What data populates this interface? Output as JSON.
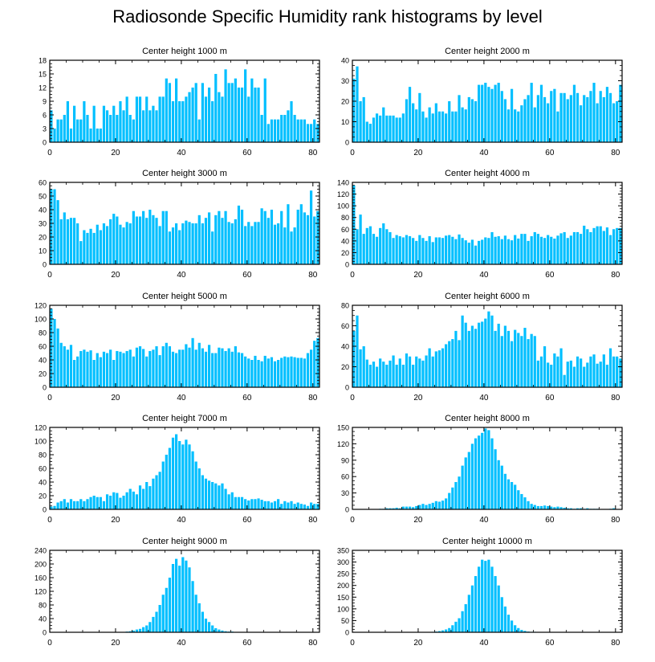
{
  "title": "Radiosonde Specific Humidity rank histograms by level",
  "bar_color": "#00bfff",
  "chart_data": [
    {
      "type": "bar",
      "title": "Center height 1000 m",
      "xlabel": "",
      "ylabel": "",
      "xlim": [
        0,
        82
      ],
      "xticks": [
        0,
        20,
        40,
        60,
        80
      ],
      "ylim": [
        0,
        18
      ],
      "yticks": [
        0,
        3,
        6,
        9,
        12,
        15,
        18
      ],
      "values": [
        7,
        3,
        5,
        5,
        6,
        9,
        3,
        8,
        5,
        5,
        9,
        6,
        3,
        8,
        3,
        3,
        8,
        7,
        6,
        8,
        6,
        9,
        7,
        10,
        6,
        5,
        10,
        10,
        7,
        10,
        7,
        8,
        7,
        10,
        10,
        14,
        13,
        9,
        14,
        9,
        9,
        10,
        11,
        12,
        13,
        5,
        13,
        10,
        12,
        9,
        15,
        11,
        10,
        16,
        13,
        13,
        14,
        12,
        12,
        16,
        10,
        14,
        12,
        12,
        6,
        14,
        4,
        5,
        5,
        5,
        6,
        6,
        7,
        9,
        6,
        5,
        5,
        5,
        4,
        4,
        5,
        4
      ]
    },
    {
      "type": "bar",
      "title": "Center height 2000 m",
      "xlabel": "",
      "ylabel": "",
      "xlim": [
        0,
        82
      ],
      "xticks": [
        0,
        20,
        40,
        60,
        80
      ],
      "ylim": [
        0,
        40
      ],
      "yticks": [
        0,
        10,
        20,
        30,
        40
      ],
      "values": [
        31,
        37,
        20,
        22,
        10,
        9,
        12,
        14,
        13,
        17,
        13,
        13,
        13,
        12,
        12,
        14,
        21,
        27,
        19,
        16,
        24,
        15,
        12,
        17,
        14,
        19,
        15,
        15,
        14,
        20,
        15,
        15,
        23,
        17,
        16,
        22,
        21,
        20,
        28,
        28,
        29,
        27,
        26,
        28,
        29,
        25,
        21,
        16,
        26,
        16,
        15,
        18,
        21,
        23,
        29,
        17,
        23,
        28,
        22,
        19,
        25,
        26,
        15,
        24,
        24,
        21,
        23,
        28,
        24,
        18,
        23,
        22,
        25,
        29,
        19,
        25,
        22,
        27,
        24,
        19,
        20,
        28
      ]
    },
    {
      "type": "bar",
      "title": "Center height 3000 m",
      "xlabel": "",
      "ylabel": "",
      "xlim": [
        0,
        82
      ],
      "xticks": [
        0,
        20,
        40,
        60,
        80
      ],
      "ylim": [
        0,
        60
      ],
      "yticks": [
        0,
        10,
        20,
        30,
        40,
        50,
        60
      ],
      "values": [
        55,
        55,
        47,
        33,
        38,
        33,
        34,
        34,
        30,
        17,
        25,
        23,
        26,
        23,
        29,
        25,
        30,
        28,
        33,
        37,
        35,
        29,
        27,
        31,
        30,
        39,
        35,
        35,
        39,
        34,
        40,
        36,
        34,
        28,
        39,
        39,
        24,
        27,
        30,
        25,
        30,
        32,
        31,
        30,
        30,
        36,
        30,
        34,
        38,
        24,
        36,
        39,
        34,
        39,
        31,
        30,
        33,
        43,
        40,
        28,
        31,
        28,
        31,
        31,
        41,
        39,
        34,
        40,
        29,
        30,
        39,
        27,
        44,
        24,
        27,
        40,
        44,
        38,
        36,
        54,
        35,
        39
      ]
    },
    {
      "type": "bar",
      "title": "Center height 4000 m",
      "xlabel": "",
      "ylabel": "",
      "xlim": [
        0,
        82
      ],
      "xticks": [
        0,
        20,
        40,
        60,
        80
      ],
      "ylim": [
        0,
        140
      ],
      "yticks": [
        0,
        20,
        40,
        60,
        80,
        100,
        120,
        140
      ],
      "values": [
        135,
        60,
        85,
        52,
        62,
        65,
        52,
        47,
        62,
        70,
        60,
        55,
        45,
        50,
        48,
        46,
        50,
        48,
        45,
        40,
        50,
        45,
        40,
        48,
        38,
        46,
        46,
        45,
        49,
        50,
        47,
        43,
        51,
        45,
        41,
        37,
        42,
        32,
        40,
        42,
        46,
        45,
        55,
        47,
        48,
        43,
        49,
        43,
        41,
        50,
        44,
        52,
        52,
        40,
        48,
        55,
        52,
        47,
        45,
        50,
        47,
        44,
        49,
        53,
        55,
        45,
        49,
        55,
        55,
        52,
        66,
        60,
        55,
        62,
        65,
        65,
        57,
        63,
        50,
        60,
        62,
        62
      ]
    },
    {
      "type": "bar",
      "title": "Center height 5000 m",
      "xlabel": "",
      "ylabel": "",
      "xlim": [
        0,
        82
      ],
      "xticks": [
        0,
        20,
        40,
        60,
        80
      ],
      "ylim": [
        0,
        120
      ],
      "yticks": [
        0,
        20,
        40,
        60,
        80,
        100,
        120
      ],
      "values": [
        115,
        100,
        86,
        65,
        60,
        55,
        62,
        40,
        45,
        53,
        55,
        52,
        54,
        40,
        50,
        44,
        52,
        50,
        55,
        40,
        53,
        52,
        50,
        53,
        55,
        45,
        58,
        60,
        56,
        45,
        53,
        55,
        60,
        47,
        60,
        65,
        60,
        52,
        50,
        55,
        55,
        63,
        58,
        72,
        55,
        65,
        57,
        52,
        62,
        50,
        50,
        58,
        57,
        53,
        57,
        52,
        60,
        51,
        50,
        45,
        42,
        40,
        46,
        40,
        38,
        46,
        42,
        44,
        38,
        40,
        43,
        45,
        44,
        45,
        44,
        43,
        43,
        42,
        50,
        55,
        68,
        72
      ]
    },
    {
      "type": "bar",
      "title": "Center height 6000 m",
      "xlabel": "",
      "ylabel": "",
      "xlim": [
        0,
        82
      ],
      "xticks": [
        0,
        20,
        40,
        60,
        80
      ],
      "ylim": [
        0,
        80
      ],
      "yticks": [
        0,
        20,
        40,
        60,
        80
      ],
      "values": [
        55,
        70,
        37,
        40,
        27,
        22,
        25,
        20,
        28,
        25,
        22,
        26,
        31,
        22,
        28,
        22,
        33,
        30,
        22,
        30,
        28,
        26,
        31,
        38,
        30,
        35,
        36,
        38,
        42,
        45,
        47,
        55,
        46,
        70,
        63,
        55,
        60,
        57,
        63,
        64,
        67,
        74,
        70,
        55,
        62,
        50,
        60,
        55,
        45,
        56,
        53,
        50,
        58,
        47,
        52,
        50,
        26,
        30,
        40,
        24,
        22,
        33,
        30,
        38,
        12,
        25,
        26,
        20,
        30,
        28,
        20,
        24,
        30,
        32,
        23,
        25,
        32,
        22,
        38,
        30,
        30,
        28
      ]
    },
    {
      "type": "bar",
      "title": "Center height 7000 m",
      "xlabel": "",
      "ylabel": "",
      "xlim": [
        0,
        82
      ],
      "xticks": [
        0,
        20,
        40,
        60,
        80
      ],
      "ylim": [
        0,
        120
      ],
      "yticks": [
        0,
        20,
        40,
        60,
        80,
        100,
        120
      ],
      "values": [
        4,
        5,
        10,
        12,
        15,
        10,
        15,
        12,
        12,
        15,
        12,
        15,
        18,
        20,
        18,
        18,
        12,
        22,
        20,
        25,
        24,
        17,
        20,
        25,
        30,
        26,
        22,
        35,
        30,
        40,
        34,
        45,
        50,
        55,
        70,
        80,
        90,
        105,
        110,
        100,
        95,
        102,
        95,
        85,
        70,
        60,
        50,
        45,
        42,
        40,
        38,
        35,
        38,
        30,
        22,
        25,
        18,
        18,
        18,
        15,
        13,
        15,
        15,
        16,
        14,
        12,
        12,
        10,
        12,
        15,
        8,
        12,
        10,
        12,
        8,
        10,
        8,
        7,
        5,
        10,
        8,
        8
      ]
    },
    {
      "type": "bar",
      "title": "Center height 8000 m",
      "xlabel": "",
      "ylabel": "",
      "xlim": [
        0,
        82
      ],
      "xticks": [
        0,
        20,
        40,
        60,
        80
      ],
      "ylim": [
        0,
        150
      ],
      "yticks": [
        0,
        30,
        60,
        90,
        120,
        150
      ],
      "values": [
        0,
        0,
        0,
        0,
        0,
        0,
        0,
        0,
        1,
        1,
        2,
        2,
        2,
        3,
        2,
        5,
        5,
        5,
        4,
        6,
        8,
        10,
        8,
        10,
        12,
        15,
        14,
        16,
        20,
        30,
        40,
        50,
        60,
        80,
        95,
        105,
        120,
        130,
        135,
        140,
        148,
        145,
        130,
        110,
        90,
        80,
        65,
        55,
        50,
        45,
        35,
        28,
        22,
        15,
        10,
        8,
        6,
        6,
        7,
        6,
        5,
        4,
        5,
        4,
        3,
        2,
        2,
        1,
        2,
        2,
        1,
        2,
        1,
        1,
        1,
        0,
        0,
        0,
        1,
        2,
        0,
        0
      ]
    },
    {
      "type": "bar",
      "title": "Center height 9000 m",
      "xlabel": "",
      "ylabel": "",
      "xlim": [
        0,
        82
      ],
      "xticks": [
        0,
        20,
        40,
        60,
        80
      ],
      "ylim": [
        0,
        240
      ],
      "yticks": [
        0,
        40,
        80,
        120,
        160,
        200,
        240
      ],
      "values": [
        0,
        0,
        0,
        0,
        0,
        0,
        0,
        0,
        0,
        0,
        0,
        0,
        0,
        0,
        0,
        0,
        0,
        0,
        0,
        0,
        0,
        1,
        1,
        2,
        3,
        5,
        8,
        10,
        15,
        20,
        30,
        45,
        60,
        80,
        110,
        130,
        160,
        200,
        215,
        195,
        220,
        210,
        190,
        150,
        110,
        85,
        60,
        40,
        30,
        20,
        12,
        8,
        5,
        3,
        2,
        2,
        1,
        1,
        1,
        0,
        0,
        0,
        0,
        0,
        0,
        0,
        0,
        0,
        0,
        0,
        0,
        0,
        0,
        0,
        0,
        0,
        0,
        0,
        0,
        0,
        0,
        0
      ]
    },
    {
      "type": "bar",
      "title": "Center height 10000 m",
      "xlabel": "",
      "ylabel": "",
      "xlim": [
        0,
        82
      ],
      "xticks": [
        0,
        20,
        40,
        60,
        80
      ],
      "ylim": [
        0,
        350
      ],
      "yticks": [
        0,
        50,
        100,
        150,
        200,
        250,
        300,
        350
      ],
      "values": [
        0,
        0,
        0,
        0,
        0,
        0,
        0,
        0,
        0,
        0,
        0,
        0,
        0,
        0,
        0,
        0,
        0,
        0,
        0,
        0,
        0,
        0,
        0,
        1,
        2,
        3,
        5,
        8,
        12,
        18,
        30,
        45,
        60,
        90,
        120,
        160,
        200,
        240,
        280,
        310,
        305,
        310,
        280,
        240,
        200,
        150,
        110,
        75,
        50,
        30,
        18,
        10,
        6,
        3,
        2,
        2,
        1,
        1,
        0,
        0,
        0,
        0,
        0,
        0,
        0,
        0,
        0,
        0,
        0,
        0,
        0,
        0,
        0,
        0,
        0,
        0,
        0,
        0,
        0,
        0,
        0,
        0
      ]
    }
  ]
}
